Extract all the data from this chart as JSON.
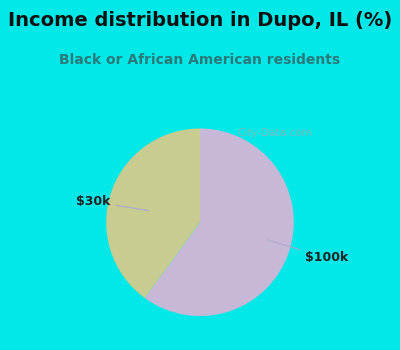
{
  "title": "Income distribution in Dupo, IL (%)",
  "subtitle": "Black or African American residents",
  "slices": [
    0.6,
    0.4
  ],
  "labels": [
    "$100k",
    "$30k"
  ],
  "colors": [
    "#c8b8d8",
    "#c8cc90"
  ],
  "background_cyan": "#00e8e8",
  "background_chart": "#ddf0e8",
  "title_color": "#111111",
  "subtitle_color": "#2a7a7a",
  "label_color": "#222222",
  "startangle": 90,
  "watermark": "City-Data.com",
  "title_fontsize": 14,
  "subtitle_fontsize": 10
}
